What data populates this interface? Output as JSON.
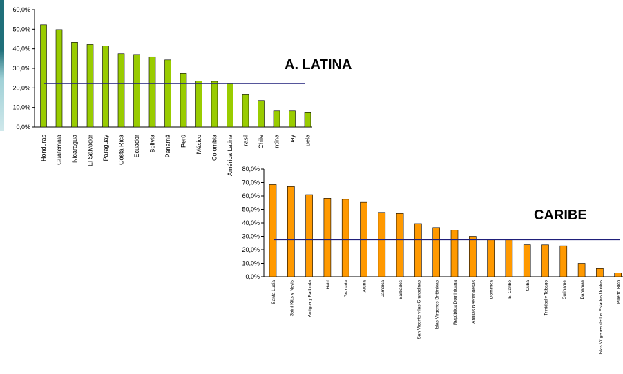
{
  "chart_data": [
    {
      "type": "bar",
      "title": "A. LATINA",
      "bar_color": "#99cc00",
      "reference_line_color": "#1f1f7a",
      "reference_value": 22.2,
      "ylim": [
        0,
        60
      ],
      "y_ticks": [
        "0,0%",
        "10,0%",
        "20,0%",
        "30,0%",
        "40,0%",
        "50,0%",
        "60,0%"
      ],
      "categories": [
        "Honduras",
        "Guatemala",
        "Nicaragua",
        "El Salvador",
        "Paraguay",
        "Costa Rica",
        "Ecuador",
        "Bolivia",
        "Panamá",
        "Perú",
        "México",
        "Colombia",
        "América Latina",
        "rasil",
        "Chile",
        "ntina",
        "uay",
        "uela"
      ],
      "values": [
        52.3,
        49.8,
        43.3,
        42.2,
        41.5,
        37.5,
        37.1,
        35.9,
        34.3,
        27.4,
        23.4,
        23.3,
        22.2,
        16.8,
        13.5,
        8.2,
        8.2,
        7.3
      ]
    },
    {
      "type": "bar",
      "title": "CARIBE",
      "bar_color": "#ff9900",
      "reference_line_color": "#1f1f7a",
      "reference_value": 27.4,
      "ylim": [
        0,
        80
      ],
      "y_ticks": [
        "0,0%",
        "10,0%",
        "20,0%",
        "30,0%",
        "40,0%",
        "50,0%",
        "60,0%",
        "70,0%",
        "80,0%"
      ],
      "categories": [
        "Santa Lucía",
        "Saint Kitts y Nevis",
        "Antigua y Barbuda",
        "Haití",
        "Granada",
        "Aruba",
        "Jamaica",
        "Barbados",
        "San Vicente y las Granadinas",
        "Islas Vírgenes Británicas",
        "República Dominicana",
        "Antillas Neerlandesas",
        "Dominica",
        "El Caribe",
        "Cuba",
        "Trinidad y Tabago",
        "Suriname",
        "Bahamas",
        "Islas Vírgenes de los Estados Unidos",
        "Puerto Rico"
      ],
      "values": [
        68.5,
        67.0,
        61.0,
        58.3,
        57.5,
        55.3,
        47.8,
        47.0,
        39.5,
        36.5,
        34.5,
        30.0,
        28.0,
        27.4,
        23.8,
        23.7,
        23.0,
        10.0,
        6.0,
        2.8
      ]
    }
  ]
}
